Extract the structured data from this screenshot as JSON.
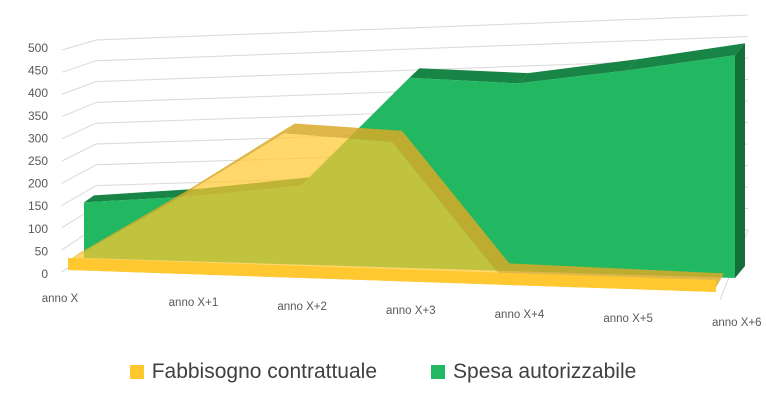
{
  "chart_data": {
    "type": "area",
    "categories": [
      "anno X",
      "anno X+1",
      "anno X+2",
      "anno X+3",
      "anno X+4",
      "anno X+5",
      "anno X+6"
    ],
    "series": [
      {
        "name": "Fabbisogno contrattuale",
        "values": [
          20,
          160,
          310,
          300,
          20,
          15,
          10
        ],
        "color": "#FFC830"
      },
      {
        "name": "Spesa autorizzabile",
        "values": [
          120,
          140,
          170,
          410,
          405,
          440,
          480
        ],
        "color": "#22B761"
      }
    ],
    "ylim": [
      0,
      500
    ],
    "yticks": [
      0,
      50,
      100,
      150,
      200,
      250,
      300,
      350,
      400,
      450,
      500
    ],
    "grid": true,
    "legend": "bottom",
    "three_d": true
  }
}
